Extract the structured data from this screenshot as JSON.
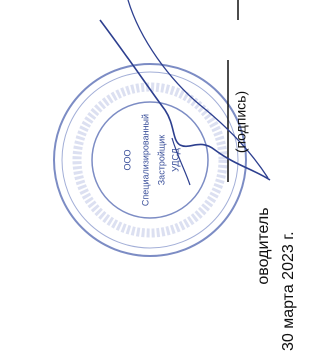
{
  "stamp": {
    "lines": [
      "ООО",
      "Специализированный",
      "Застройщик",
      "УДСД"
    ]
  },
  "signature_caption": "(подпись)",
  "position": "оводитель",
  "date": "30 марта 2023 г."
}
